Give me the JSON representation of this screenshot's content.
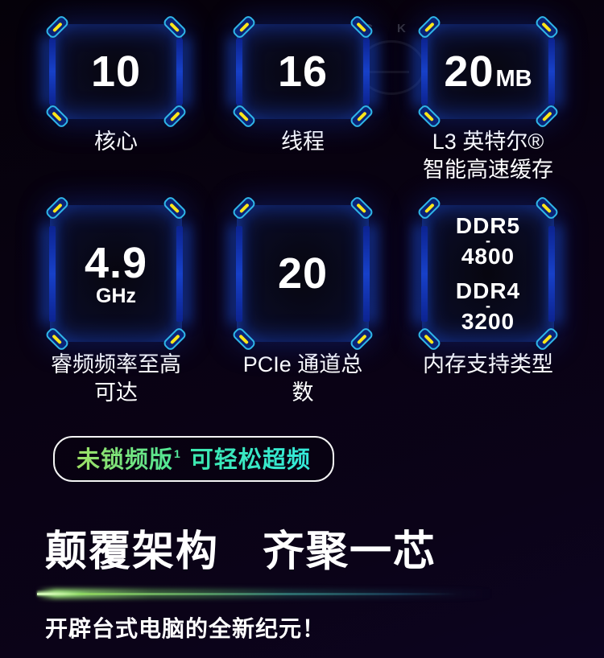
{
  "colors": {
    "page_bg": "#08020f",
    "tile_bar_blue": "#1538c2",
    "corner_cyan": "#2fb6e8",
    "corner_yellow": "#ffe719",
    "outer_glow_blue": "#1e4ae0",
    "badge_border": "#f5f5f5",
    "badge_gradient_start": "#a6e26b",
    "badge_gradient_end": "#35e8d6",
    "line_green": "#8fd45e",
    "text_white": "#ffffff"
  },
  "background_decor": {
    "faint_letters": "C K E D"
  },
  "stats": {
    "row1": [
      {
        "value": "10",
        "label": "核心"
      },
      {
        "value": "16",
        "label": "线程"
      },
      {
        "value": "20",
        "unit": "MB",
        "label": "L3 英特尔®\n智能高速缓存"
      }
    ],
    "row2": [
      {
        "value": "4.9",
        "unit": "GHz",
        "label": "睿频频率至高可达"
      },
      {
        "value": "20",
        "label": "PCIe 通道总数"
      },
      {
        "label": "内存支持类型",
        "memory": {
          "type1": "DDR5",
          "dash": "-",
          "speed1": "4800",
          "type2": "DDR4",
          "speed2": "3200"
        }
      }
    ]
  },
  "badge": {
    "pre": "未锁频版",
    "sup": "1",
    "post": "可轻松超频"
  },
  "heading": "颠覆架构　齐聚一芯",
  "tagline": "开辟台式电脑的全新纪元！"
}
